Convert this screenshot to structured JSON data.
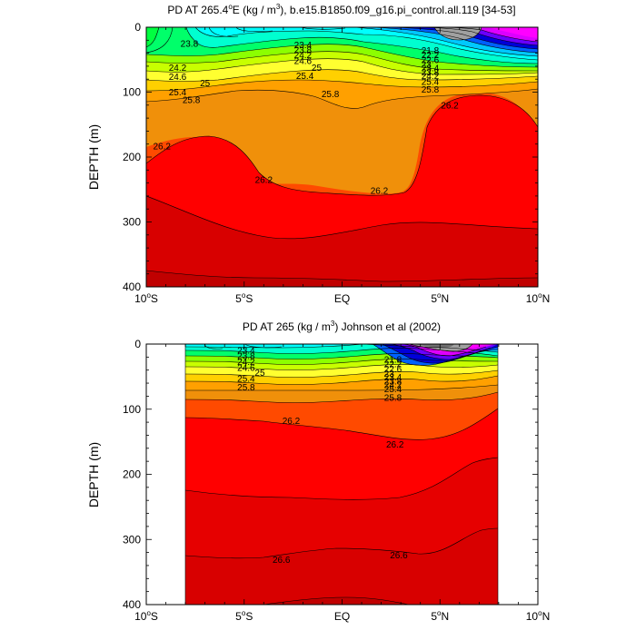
{
  "chart_data": [
    {
      "type": "contour",
      "title": "PD AT 265.4°E (kg / m³), b.e15.B1850.f09_g16.pi_control.all.119 [34-53]",
      "title_parts": {
        "pre": "PD AT 265.4",
        "deg": "o",
        "mid": "E (kg / m",
        "sup": "3",
        "post": "), b.e15.B1850.f09_g16.pi_control.all.119 [34-53]"
      },
      "ylabel": "DEPTH (m)",
      "y_inverted": true,
      "xlim": [
        -10,
        10
      ],
      "ylim": [
        0,
        400
      ],
      "x_ticks": [
        {
          "value": -10,
          "num": "10",
          "deg": "o",
          "dir": "S"
        },
        {
          "value": -5,
          "num": "5",
          "deg": "o",
          "dir": "S"
        },
        {
          "value": 0,
          "num": "EQ",
          "deg": "",
          "dir": ""
        },
        {
          "value": 5,
          "num": "5",
          "deg": "o",
          "dir": "N"
        },
        {
          "value": 10,
          "num": "10",
          "deg": "o",
          "dir": "N"
        }
      ],
      "y_ticks": [
        "0",
        "100",
        "200",
        "300",
        "400"
      ],
      "contour_labels": [
        {
          "text": "23.8",
          "x": -7.8,
          "y": 25
        },
        {
          "text": "23.4",
          "x": -2.0,
          "y": 27
        },
        {
          "text": "23.8",
          "x": -2.0,
          "y": 35
        },
        {
          "text": "24.2",
          "x": -2.0,
          "y": 43
        },
        {
          "text": "24.6",
          "x": -2.0,
          "y": 52
        },
        {
          "text": "25",
          "x": -1.3,
          "y": 62
        },
        {
          "text": "25.4",
          "x": -1.9,
          "y": 75
        },
        {
          "text": "25.8",
          "x": -0.6,
          "y": 103
        },
        {
          "text": "24.2",
          "x": -8.4,
          "y": 62
        },
        {
          "text": "24.6",
          "x": -8.4,
          "y": 76
        },
        {
          "text": "25",
          "x": -7.0,
          "y": 86
        },
        {
          "text": "25.4",
          "x": -8.4,
          "y": 100
        },
        {
          "text": "25.8",
          "x": -7.7,
          "y": 112
        },
        {
          "text": "21.8",
          "x": 4.5,
          "y": 36
        },
        {
          "text": "22.2",
          "x": 4.5,
          "y": 43
        },
        {
          "text": "22.6",
          "x": 4.5,
          "y": 50
        },
        {
          "text": "23",
          "x": 4.3,
          "y": 57
        },
        {
          "text": "23.4",
          "x": 4.5,
          "y": 63
        },
        {
          "text": "23.8",
          "x": 4.5,
          "y": 69
        },
        {
          "text": "24.2",
          "x": 4.5,
          "y": 75
        },
        {
          "text": "25.4",
          "x": 4.5,
          "y": 84
        },
        {
          "text": "25.8",
          "x": 4.5,
          "y": 96
        },
        {
          "text": "26.2",
          "x": 5.5,
          "y": 120
        },
        {
          "text": "26.2",
          "x": -9.2,
          "y": 183
        },
        {
          "text": "26.2",
          "x": -4.0,
          "y": 235
        },
        {
          "text": "26.2",
          "x": 1.9,
          "y": 252
        }
      ],
      "levels": [
        {
          "value": 22.2,
          "color": "#ff00ff"
        },
        {
          "value": 22.6,
          "color": "#dd00ff"
        },
        {
          "value": 23.0,
          "color": "#6a00ff"
        },
        {
          "value": 23.4,
          "color": "#0000d8"
        },
        {
          "value": 23.8,
          "color": "#0060ff"
        },
        {
          "value": 24.2,
          "color": "#00c8ff"
        },
        {
          "value": 24.6,
          "color": "#00ffd0"
        },
        {
          "value": 25.0,
          "color": "#00ff6a"
        },
        {
          "value": 25.4,
          "color": "#c8ff00"
        },
        {
          "value": 25.8,
          "color": "#ffd000"
        },
        {
          "value": 26.2,
          "color": "#f0900a"
        },
        {
          "value": 26.6,
          "color": "#ff4a00"
        },
        {
          "value": 27.0,
          "color": "#ff0000"
        },
        {
          "value": 27.4,
          "color": "#d80000"
        }
      ]
    },
    {
      "type": "contour",
      "title": "PD AT 265 (kg / m³) Johnson et al (2002)",
      "title_parts": {
        "pre": "PD AT 265 (kg / m",
        "sup": "3",
        "post": ") Johnson et al (2002)"
      },
      "ylabel": "DEPTH (m)",
      "y_inverted": true,
      "xlim": [
        -10,
        10
      ],
      "ylim": [
        0,
        400
      ],
      "data_xlim": [
        -8,
        8
      ],
      "x_ticks": [
        {
          "value": -10,
          "num": "10",
          "deg": "o",
          "dir": "S"
        },
        {
          "value": -5,
          "num": "5",
          "deg": "o",
          "dir": "S"
        },
        {
          "value": 0,
          "num": "EQ",
          "deg": "",
          "dir": ""
        },
        {
          "value": 5,
          "num": "5",
          "deg": "o",
          "dir": "N"
        },
        {
          "value": 10,
          "num": "10",
          "deg": "o",
          "dir": "N"
        }
      ],
      "y_ticks": [
        "0",
        "100",
        "200",
        "300",
        "400"
      ],
      "contour_labels": [
        {
          "text": "23.4",
          "x": -4.9,
          "y": 10
        },
        {
          "text": "23.8",
          "x": -4.9,
          "y": 18
        },
        {
          "text": "24.2",
          "x": -4.9,
          "y": 27
        },
        {
          "text": "24.6",
          "x": -4.9,
          "y": 36
        },
        {
          "text": "25",
          "x": -4.2,
          "y": 44
        },
        {
          "text": "25.4",
          "x": -4.9,
          "y": 53
        },
        {
          "text": "25.8",
          "x": -4.9,
          "y": 66
        },
        {
          "text": "21.8",
          "x": 2.6,
          "y": 24
        },
        {
          "text": "22.2",
          "x": 2.6,
          "y": 31
        },
        {
          "text": "22.6",
          "x": 2.6,
          "y": 38
        },
        {
          "text": "23",
          "x": 2.4,
          "y": 45
        },
        {
          "text": "23.4",
          "x": 2.6,
          "y": 51
        },
        {
          "text": "23.8",
          "x": 2.6,
          "y": 57
        },
        {
          "text": "24.2",
          "x": 2.6,
          "y": 63
        },
        {
          "text": "25.4",
          "x": 2.6,
          "y": 69
        },
        {
          "text": "25.8",
          "x": 2.6,
          "y": 82
        },
        {
          "text": "26.2",
          "x": -2.6,
          "y": 118
        },
        {
          "text": "26.2",
          "x": 2.7,
          "y": 154
        },
        {
          "text": "26.6",
          "x": -3.1,
          "y": 331
        },
        {
          "text": "26.6",
          "x": 2.9,
          "y": 324
        }
      ],
      "levels": [
        {
          "value": 22.2,
          "color": "#ff00ff"
        },
        {
          "value": 22.6,
          "color": "#dd00ff"
        },
        {
          "value": 23.0,
          "color": "#6a00ff"
        },
        {
          "value": 23.4,
          "color": "#0000d8"
        },
        {
          "value": 23.8,
          "color": "#0060ff"
        },
        {
          "value": 24.2,
          "color": "#00c8ff"
        },
        {
          "value": 24.6,
          "color": "#00ffd0"
        },
        {
          "value": 25.0,
          "color": "#00ff6a"
        },
        {
          "value": 25.4,
          "color": "#c8ff00"
        },
        {
          "value": 25.8,
          "color": "#ffd000"
        },
        {
          "value": 26.2,
          "color": "#f0900a"
        },
        {
          "value": 26.6,
          "color": "#ff4a00"
        },
        {
          "value": 27.0,
          "color": "#ff0000"
        },
        {
          "value": 27.4,
          "color": "#d80000"
        }
      ]
    }
  ]
}
